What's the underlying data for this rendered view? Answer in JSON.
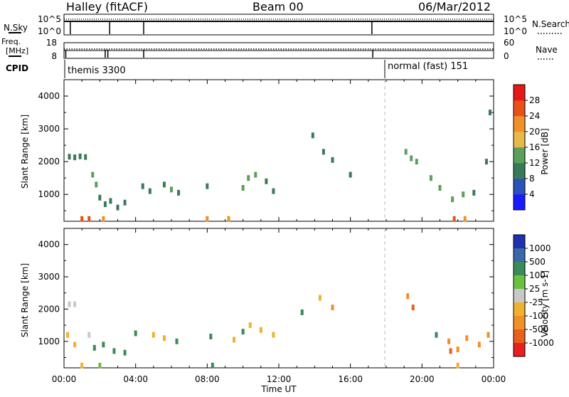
{
  "header": {
    "station": "Halley (fitACF)",
    "beam": "Beam 00",
    "date": "06/Mar/2012"
  },
  "strips": {
    "nsky_label": "N.Sky",
    "nsky_ticks": [
      "10^5",
      "10^0"
    ],
    "nsearch_label": "N.Search",
    "freq_label_1": "Freq.",
    "freq_label_2": "[MHz]",
    "freq_ticks": [
      "18",
      "8"
    ],
    "nave_label": "Nave",
    "nave_ticks": [
      "60",
      "0"
    ],
    "cpid_label": "CPID",
    "cpid_segments": [
      {
        "label": "themis 3300",
        "start": "00:00",
        "end": "18:00"
      },
      {
        "label": "normal (fast) 151",
        "start": "18:00",
        "end": "24:00"
      }
    ]
  },
  "axes": {
    "x_title": "Time UT",
    "x_ticks": [
      "00:00",
      "04:00",
      "08:00",
      "12:00",
      "16:00",
      "20:00",
      "00:00"
    ],
    "y_title": "Slant Range [km]",
    "y_ticks": [
      "1000",
      "2000",
      "3000",
      "4000"
    ]
  },
  "colorbars": {
    "power": {
      "title": "Power [dB]",
      "ticks": [
        "4",
        "8",
        "12",
        "16",
        "20",
        "24",
        "28"
      ],
      "colors": [
        "#1a1aff",
        "#2a52b8",
        "#3a7a5a",
        "#5aa05a",
        "#e8b84a",
        "#f09028",
        "#e8501a",
        "#e81818"
      ]
    },
    "velocity": {
      "title": "Velocity [m s-1]",
      "ticks": [
        "1000",
        "500",
        "100",
        "25",
        "-25",
        "-100",
        "-500",
        "-1000"
      ],
      "colors": [
        "#2030b0",
        "#3a68a8",
        "#3a8a5a",
        "#6ac040",
        "#c8c8c8",
        "#f0b030",
        "#f09028",
        "#e8601a",
        "#e82020"
      ]
    }
  },
  "chart_data": [
    {
      "type": "scatter",
      "title": "Power",
      "xlabel": "Time UT",
      "ylabel": "Slant Range [km]",
      "xlim": [
        0,
        24
      ],
      "ylim": [
        180,
        4500
      ],
      "colorbar": "Power [dB]",
      "series": [
        {
          "values": [
            [
              0.3,
              2150,
              8
            ],
            [
              0.6,
              2130,
              8
            ],
            [
              0.9,
              2160,
              8
            ],
            [
              1.2,
              2140,
              8
            ],
            [
              1.6,
              1600,
              12
            ],
            [
              1.8,
              1300,
              12
            ],
            [
              2.0,
              900,
              8
            ],
            [
              2.3,
              700,
              8
            ],
            [
              2.6,
              800,
              8
            ],
            [
              3.0,
              600,
              8
            ],
            [
              3.4,
              750,
              8
            ],
            [
              4.4,
              1250,
              8
            ],
            [
              4.8,
              1100,
              8
            ],
            [
              5.6,
              1300,
              8
            ],
            [
              6.0,
              1150,
              12
            ],
            [
              6.4,
              1050,
              8
            ],
            [
              8.0,
              1250,
              8
            ],
            [
              10.0,
              1200,
              12
            ],
            [
              10.3,
              1500,
              12
            ],
            [
              10.7,
              1600,
              12
            ],
            [
              11.3,
              1400,
              8
            ],
            [
              11.7,
              1100,
              8
            ],
            [
              13.9,
              2800,
              8
            ],
            [
              14.5,
              2300,
              8
            ],
            [
              15.0,
              2050,
              8
            ],
            [
              16.0,
              1600,
              8
            ],
            [
              19.1,
              2300,
              12
            ],
            [
              19.4,
              2100,
              12
            ],
            [
              19.7,
              2000,
              12
            ],
            [
              20.5,
              1500,
              12
            ],
            [
              21.0,
              1200,
              12
            ],
            [
              21.7,
              850,
              12
            ],
            [
              22.3,
              1000,
              12
            ],
            [
              22.9,
              1050,
              8
            ],
            [
              23.6,
              2000,
              8
            ],
            [
              23.8,
              3500,
              8
            ],
            [
              1.0,
              250,
              24
            ],
            [
              1.4,
              250,
              24
            ],
            [
              2.2,
              250,
              20
            ],
            [
              8.0,
              250,
              20
            ],
            [
              9.2,
              250,
              20
            ],
            [
              21.8,
              250,
              24
            ],
            [
              22.4,
              250,
              20
            ]
          ]
        }
      ]
    },
    {
      "type": "scatter",
      "title": "Velocity",
      "xlabel": "Time UT",
      "ylabel": "Slant Range [km]",
      "xlim": [
        0,
        24
      ],
      "ylim": [
        180,
        4500
      ],
      "colorbar": "Velocity [m s-1]",
      "series": [
        {
          "values": [
            [
              0.3,
              2150,
              0
            ],
            [
              0.6,
              2150,
              0
            ],
            [
              0.2,
              1200,
              -100
            ],
            [
              0.6,
              900,
              -100
            ],
            [
              1.4,
              1200,
              -25
            ],
            [
              1.7,
              800,
              100
            ],
            [
              2.2,
              900,
              100
            ],
            [
              2.8,
              700,
              100
            ],
            [
              3.4,
              650,
              100
            ],
            [
              4.0,
              1250,
              100
            ],
            [
              5.0,
              1200,
              -100
            ],
            [
              5.6,
              1100,
              -100
            ],
            [
              6.3,
              1000,
              100
            ],
            [
              8.2,
              1150,
              100
            ],
            [
              9.5,
              1050,
              -100
            ],
            [
              10.0,
              1300,
              100
            ],
            [
              10.4,
              1500,
              -100
            ],
            [
              11.0,
              1350,
              -100
            ],
            [
              11.7,
              1200,
              -100
            ],
            [
              13.3,
              1900,
              100
            ],
            [
              14.3,
              2350,
              -100
            ],
            [
              15.0,
              2050,
              -500
            ],
            [
              19.2,
              2400,
              -500
            ],
            [
              19.5,
              2050,
              -1000
            ],
            [
              20.8,
              1200,
              100
            ],
            [
              21.5,
              1000,
              -500
            ],
            [
              22.0,
              750,
              -500
            ],
            [
              22.5,
              1100,
              -500
            ],
            [
              23.2,
              900,
              -500
            ],
            [
              23.7,
              1200,
              -500
            ],
            [
              21.6,
              700,
              -1000
            ],
            [
              1.0,
              250,
              -100
            ],
            [
              2.0,
              250,
              25
            ],
            [
              8.3,
              250,
              100
            ],
            [
              22.0,
              250,
              -100
            ]
          ]
        }
      ]
    }
  ]
}
